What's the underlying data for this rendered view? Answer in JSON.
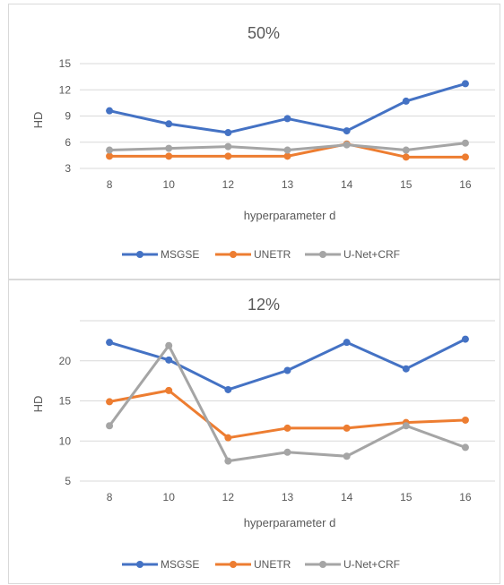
{
  "chart_data": [
    {
      "type": "line",
      "title": "50%",
      "xlabel": "hyperparameter d",
      "ylabel": "HD",
      "categories": [
        "8",
        "10",
        "12",
        "13",
        "14",
        "15",
        "16"
      ],
      "yticks": [
        "3",
        "6",
        "9",
        "12",
        "15"
      ],
      "ylim": [
        3,
        15
      ],
      "grid": true,
      "legend_position": "bottom",
      "series": [
        {
          "name": "MSGSE",
          "color": "#4472C4",
          "values": [
            9.6,
            8.1,
            7.1,
            8.7,
            7.3,
            10.7,
            12.7
          ]
        },
        {
          "name": "UNETR",
          "color": "#ED7D31",
          "values": [
            4.4,
            4.4,
            4.4,
            4.4,
            5.8,
            4.3,
            4.3
          ]
        },
        {
          "name": "U-Net+CRF",
          "color": "#A5A5A5",
          "values": [
            5.1,
            5.3,
            5.5,
            5.1,
            5.7,
            5.1,
            5.9
          ]
        }
      ]
    },
    {
      "type": "line",
      "title": "12%",
      "xlabel": "hyperparameter d",
      "ylabel": "HD",
      "categories": [
        "8",
        "10",
        "12",
        "13",
        "14",
        "15",
        "16"
      ],
      "yticks": [
        "5",
        "10",
        "15",
        "20"
      ],
      "ylim": [
        5,
        25
      ],
      "grid": true,
      "legend_position": "bottom",
      "series": [
        {
          "name": "MSGSE",
          "color": "#4472C4",
          "values": [
            22.3,
            20.1,
            16.4,
            18.8,
            22.3,
            19.0,
            22.7
          ]
        },
        {
          "name": "UNETR",
          "color": "#ED7D31",
          "values": [
            14.9,
            16.3,
            10.4,
            11.6,
            11.6,
            12.3,
            12.6
          ]
        },
        {
          "name": "U-Net+CRF",
          "color": "#A5A5A5",
          "values": [
            11.9,
            21.9,
            7.5,
            8.6,
            8.1,
            11.9,
            9.2
          ]
        }
      ]
    }
  ]
}
